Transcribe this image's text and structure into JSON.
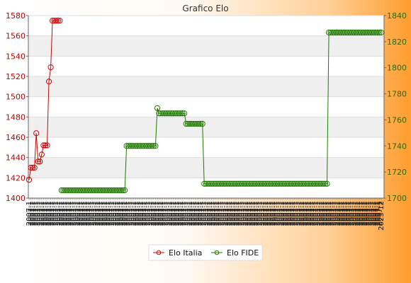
{
  "chart_data": {
    "type": "line",
    "title": "Grafico Elo",
    "y_left": {
      "ticks": [
        1400,
        1420,
        1440,
        1460,
        1480,
        1500,
        1520,
        1540,
        1560,
        1580
      ],
      "range": [
        1400,
        1580
      ],
      "color": "#c00000"
    },
    "y_right": {
      "ticks": [
        1700,
        1720,
        1740,
        1760,
        1780,
        1800,
        1820,
        1840
      ],
      "range": [
        1700,
        1840
      ],
      "color": "#2b6b00"
    },
    "grid": "horizontal-bands",
    "legend_position": "bottom",
    "x_label_sample": "2007-1",
    "x_label_sample_end": "2023-12",
    "series": [
      {
        "name": "Elo Italia",
        "axis": "left",
        "color": "#d40000",
        "values": [
          1418,
          1430,
          1430,
          1430,
          1464,
          1436,
          1436,
          1443,
          1452,
          1452,
          1452,
          1515,
          1529,
          1575,
          1575,
          1575,
          1575,
          1575
        ]
      },
      {
        "name": "Elo FIDE",
        "axis": "right",
        "color": "#1f7a00",
        "segments": [
          {
            "count": 36,
            "value": 1706
          },
          {
            "count": 17,
            "value": 1740
          },
          {
            "count": 1,
            "value": 1769
          },
          {
            "count": 15,
            "value": 1765
          },
          {
            "count": 10,
            "value": 1757
          },
          {
            "count": 69,
            "value": 1711
          },
          {
            "count": 30,
            "value": 1827
          }
        ]
      }
    ]
  }
}
